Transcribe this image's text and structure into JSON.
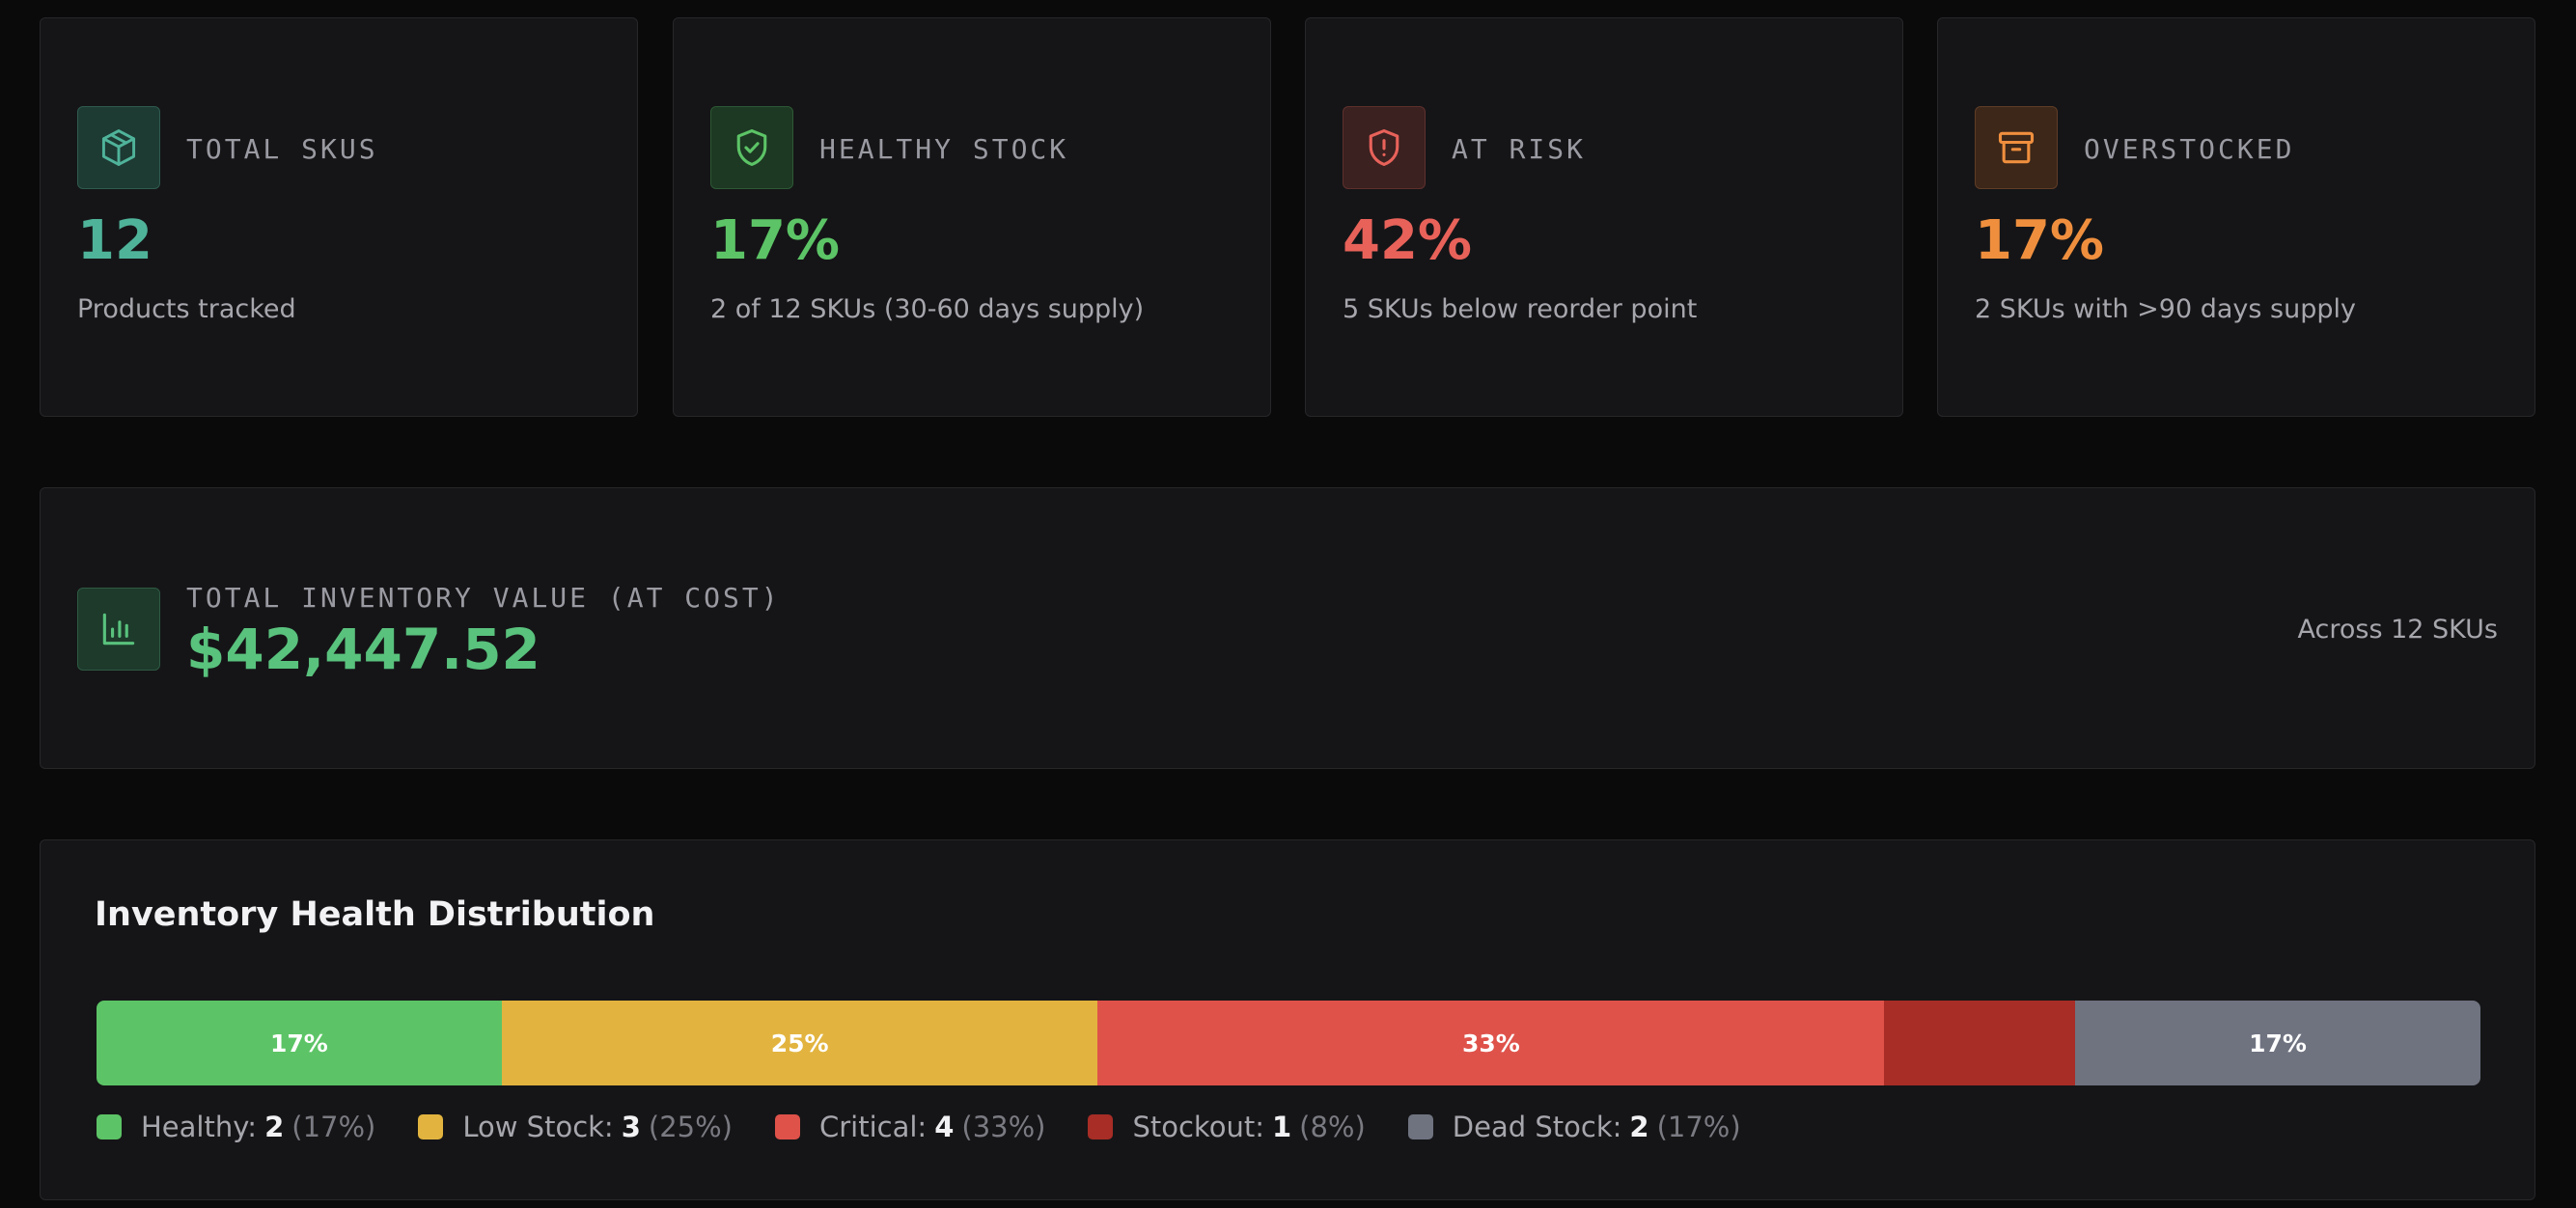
{
  "colors": {
    "healthy": "#5cc466",
    "low_stock": "#e2b43f",
    "critical": "#df524a",
    "stockout": "#a72d26",
    "dead_stock": "#6f7380",
    "teal": "#4fb39a",
    "value_green": "#59c27d",
    "risk": "#e8625a",
    "overstock": "#ef8f3e"
  },
  "stats": [
    {
      "icon": "package-icon",
      "label": "TOTAL SKUS",
      "value": "12",
      "sub": "Products tracked"
    },
    {
      "icon": "shield-check-icon",
      "label": "HEALTHY STOCK",
      "value": "17%",
      "sub": "2 of 12 SKUs (30-60 days supply)"
    },
    {
      "icon": "shield-alert-icon",
      "label": "AT RISK",
      "value": "42%",
      "sub": "5 SKUs below reorder point"
    },
    {
      "icon": "archive-icon",
      "label": "OVERSTOCKED",
      "value": "17%",
      "sub": "2 SKUs with >90 days supply"
    }
  ],
  "inventory_value": {
    "icon": "bar-chart-icon",
    "label": "TOTAL INVENTORY VALUE (AT COST)",
    "amount": "$42,447.52",
    "note": "Across 12 SKUs"
  },
  "distribution": {
    "title": "Inventory Health Distribution",
    "segments": [
      {
        "name": "Healthy:",
        "count": "2",
        "pct": "(17%)",
        "bar_label": "17%",
        "share": 17,
        "color": "#5cc466"
      },
      {
        "name": "Low Stock:",
        "count": "3",
        "pct": "(25%)",
        "bar_label": "25%",
        "share": 25,
        "color": "#e2b43f"
      },
      {
        "name": "Critical:",
        "count": "4",
        "pct": "(33%)",
        "bar_label": "33%",
        "share": 33,
        "color": "#df524a"
      },
      {
        "name": "Stockout:",
        "count": "1",
        "pct": "(8%)",
        "bar_label": "",
        "share": 8,
        "color": "#a72d26"
      },
      {
        "name": "Dead Stock:",
        "count": "2",
        "pct": "(17%)",
        "bar_label": "17%",
        "share": 17,
        "color": "#6f7380"
      }
    ]
  }
}
